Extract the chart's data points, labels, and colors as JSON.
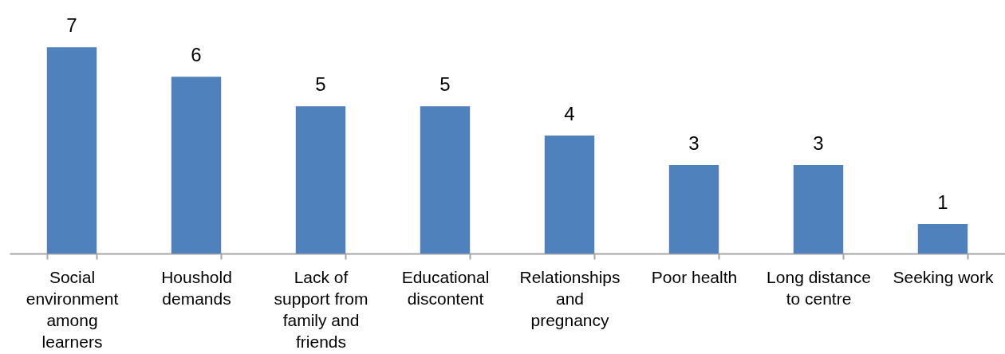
{
  "chart_data": {
    "type": "bar",
    "categories": [
      "Social environment among learners",
      "Houshold demands",
      "Lack of support from family and friends",
      "Educational discontent",
      "Relationships and pregnancy",
      "Poor health",
      "Long distance to centre",
      "Seeking work"
    ],
    "values": [
      7,
      6,
      5,
      5,
      4,
      3,
      3,
      1
    ],
    "color": "#4f81bd",
    "data_labels": true,
    "tick_labels": "x"
  }
}
